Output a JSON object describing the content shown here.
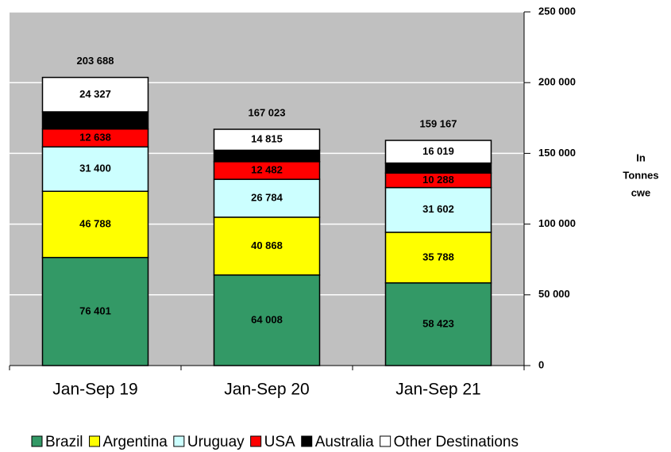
{
  "chart_data": {
    "type": "stacked_bar",
    "categories": [
      "Jan-Sep 19",
      "Jan-Sep 20",
      "Jan-Sep 21"
    ],
    "series": [
      {
        "name": "Brazil",
        "color": "#339966",
        "values": [
          76401,
          64008,
          58423
        ],
        "value_labels": [
          "76 401",
          "64 008",
          "58 423"
        ]
      },
      {
        "name": "Argentina",
        "color": "#ffff00",
        "values": [
          46788,
          40868,
          35788
        ],
        "value_labels": [
          "46 788",
          "40 868",
          "35 788"
        ]
      },
      {
        "name": "Uruguay",
        "color": "#ccffff",
        "values": [
          31400,
          26784,
          31602
        ],
        "value_labels": [
          "31 400",
          "26 784",
          "31 602"
        ]
      },
      {
        "name": "USA",
        "color": "#ff0000",
        "values": [
          12638,
          12482,
          10288
        ],
        "value_labels": [
          "12 638",
          "12 482",
          "10 288"
        ]
      },
      {
        "name": "Australia",
        "color": "#000000",
        "values": [
          12134,
          8066,
          7047
        ]
      },
      {
        "name": "Other Destinations",
        "color": "#ffffff",
        "values": [
          24327,
          14815,
          16019
        ],
        "value_labels": [
          "24 327",
          "14 815",
          "16 019"
        ]
      }
    ],
    "totals": [
      203688,
      167023,
      159167
    ],
    "total_labels": [
      "203 688",
      "167 023",
      "159 167"
    ],
    "ylabel_lines": [
      "In",
      "Tonnes",
      "cwe"
    ],
    "ylim": [
      0,
      250000
    ],
    "yticks": [
      0,
      {
        "value": 50000,
        "label": "50 000"
      },
      {
        "value": 100000,
        "label": "100 000"
      },
      {
        "value": 150000,
        "label": "150 000"
      },
      {
        "value": 200000,
        "label": "200 000"
      },
      {
        "value": 250000,
        "label": "250 000"
      }
    ],
    "grid": true,
    "legend": "bottom"
  }
}
